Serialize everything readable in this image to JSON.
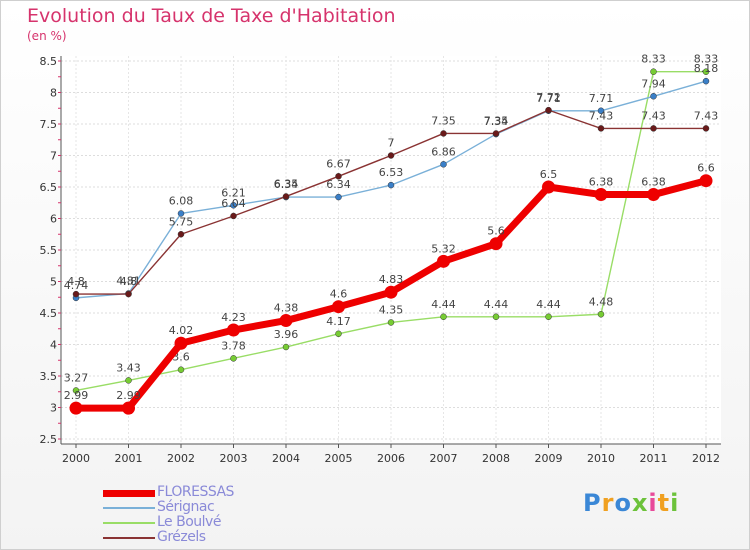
{
  "title": "Evolution du Taux de Taxe d'Habitation",
  "subtitle": "(en %)",
  "logo": {
    "letters": [
      {
        "ch": "P",
        "color": "#3a87d6"
      },
      {
        "ch": "r",
        "color": "#f0a020"
      },
      {
        "ch": "o",
        "color": "#3a87d6"
      },
      {
        "ch": "x",
        "color": "#6cc23a"
      },
      {
        "ch": "i",
        "color": "#e84a9a"
      },
      {
        "ch": "t",
        "color": "#f0a020"
      },
      {
        "ch": "i",
        "color": "#6cc23a"
      }
    ]
  },
  "chart_data": {
    "type": "line",
    "x": [
      "2000",
      "2001",
      "2002",
      "2003",
      "2004",
      "2005",
      "2006",
      "2007",
      "2008",
      "2009",
      "2010",
      "2011",
      "2012"
    ],
    "ylim": [
      2.5,
      8.5
    ],
    "yticks": [
      "2.5",
      "3",
      "3.5",
      "4",
      "4.5",
      "5",
      "5.5",
      "6",
      "6.5",
      "7",
      "7.5",
      "8",
      "8.5"
    ],
    "grid": true,
    "legend_position": "bottom-left",
    "series": [
      {
        "name": "FLORESSAS",
        "color": "#ee0000",
        "width": 7,
        "values": [
          2.99,
          2.99,
          4.02,
          4.23,
          4.38,
          4.6,
          4.83,
          5.32,
          5.6,
          6.5,
          6.38,
          6.38,
          6.6
        ],
        "labels": [
          "2.99",
          "2.99",
          "4.02",
          "4.23",
          "4.38",
          "4.6",
          "4.83",
          "5.32",
          "5.6",
          "6.5",
          "6.38",
          "6.38",
          "6.6"
        ]
      },
      {
        "name": "Sérignac",
        "color": "#7ab0d8",
        "width": 1.4,
        "marker": "#3a7fc8",
        "values": [
          4.74,
          4.81,
          6.08,
          6.21,
          6.34,
          6.34,
          6.53,
          6.86,
          7.34,
          7.71,
          7.71,
          7.94,
          8.18
        ],
        "labels": [
          "4.74",
          "4.81",
          "6.08",
          "6.21",
          "6.34",
          "6.34",
          "6.53",
          "6.86",
          "7.34",
          "7.71",
          "7.71",
          "7.94",
          "8.18"
        ]
      },
      {
        "name": "Le Boulvé",
        "color": "#99dd66",
        "width": 1.4,
        "marker": "#77cc33",
        "values": [
          3.27,
          3.43,
          3.6,
          3.78,
          3.96,
          4.17,
          4.35,
          4.44,
          4.44,
          4.44,
          4.48,
          8.33,
          8.33
        ],
        "labels": [
          "3.27",
          "3.43",
          "3.6",
          "3.78",
          "3.96",
          "4.17",
          "4.35",
          "4.44",
          "4.44",
          "4.44",
          "4.48",
          "8.33",
          "8.33"
        ]
      },
      {
        "name": "Grézels",
        "color": "#8a3333",
        "width": 1.4,
        "marker": "#6a1a1a",
        "values": [
          4.8,
          4.8,
          5.75,
          6.04,
          6.35,
          6.67,
          7.0,
          7.35,
          7.35,
          7.72,
          7.43,
          7.43,
          7.43
        ],
        "labels": [
          "4.8",
          "4.8",
          "5.75",
          "6.04",
          "6.35",
          "6.67",
          "7",
          "7.35",
          "7.35",
          "7.72",
          "7.43",
          "7.43",
          "7.43"
        ]
      }
    ]
  }
}
